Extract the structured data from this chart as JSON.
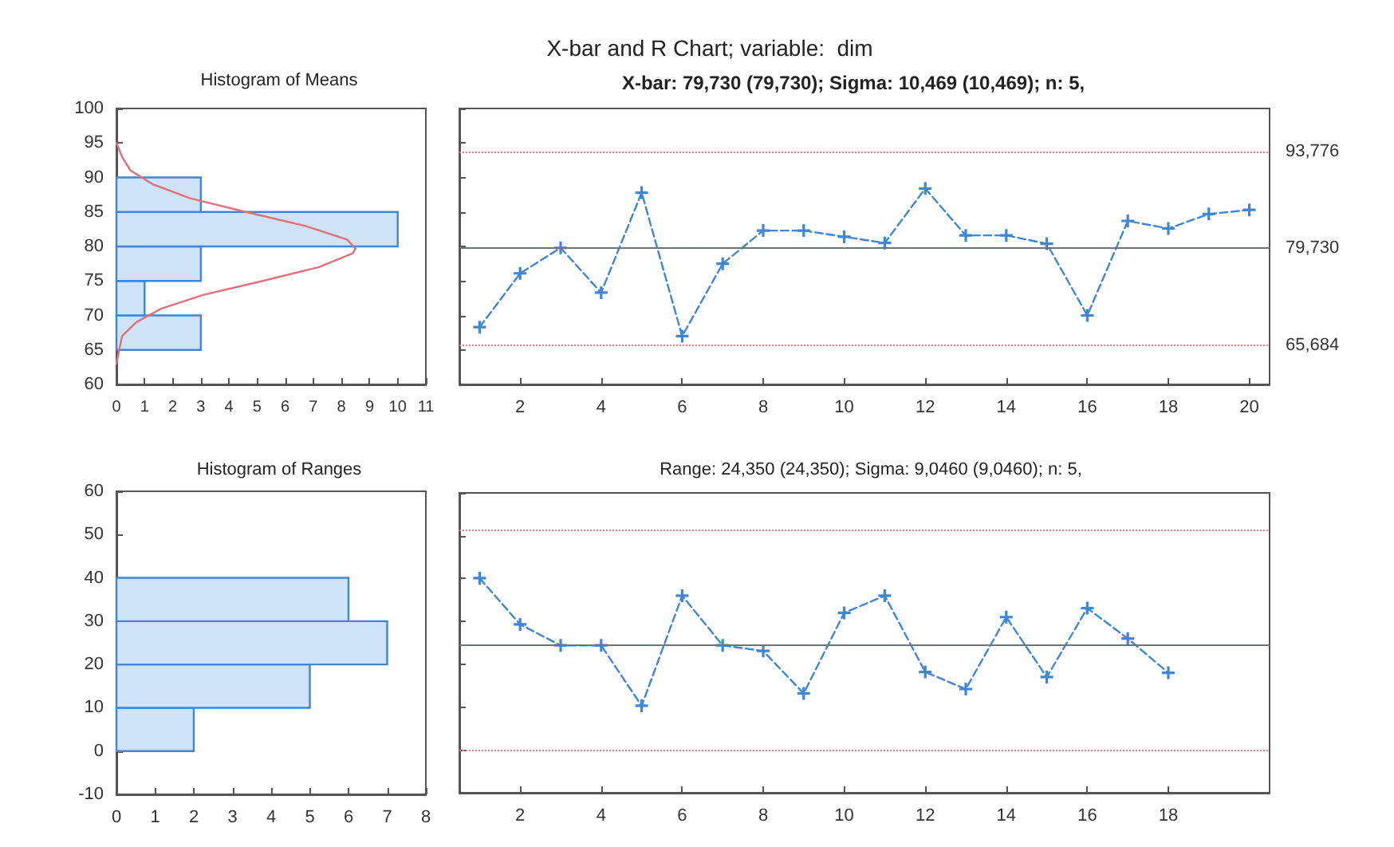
{
  "chart_data": [
    {
      "type": "histogram",
      "orientation": "horizontal",
      "title": "Histogram of Means",
      "bins": [
        65,
        70,
        75,
        80,
        85,
        90
      ],
      "values": [
        3,
        1,
        3,
        10,
        3
      ],
      "color": "#3f86d4",
      "series": [
        {
          "type": "line",
          "color": "#e0707c",
          "x": [
            63,
            65,
            67,
            69,
            71,
            73,
            75,
            77,
            79,
            79.7,
            81,
            83,
            85,
            87,
            89,
            91,
            93,
            95
          ],
          "values": [
            0,
            0.1,
            0.2,
            0.7,
            1.6,
            3.1,
            5.2,
            7.2,
            8.4,
            8.5,
            8.2,
            6.7,
            4.6,
            2.6,
            1.3,
            0.5,
            0.2,
            0
          ]
        }
      ],
      "xlim": [
        0,
        11
      ],
      "xticks": [
        0,
        1,
        2,
        3,
        4,
        5,
        6,
        7,
        8,
        9,
        10,
        11
      ],
      "ylim": [
        60,
        100
      ],
      "yticks": [
        60,
        65,
        70,
        75,
        80,
        85,
        90,
        95,
        100
      ],
      "grid": false
    },
    {
      "type": "line",
      "title": "X-bar and R Chart; variable:  dim",
      "subtitle": "X-bar: 79,730 (79,730); Sigma: 10,469 (10,469); n: 5,",
      "x": [
        1,
        2,
        3,
        4,
        5,
        6,
        7,
        8,
        9,
        10,
        11,
        12,
        13,
        14,
        15,
        16,
        17,
        18,
        19,
        20
      ],
      "series": [
        {
          "color": "#3f86d4",
          "values": [
            68.3,
            76.1,
            79.8,
            73.3,
            87.8,
            67.0,
            77.5,
            82.3,
            82.3,
            81.4,
            80.5,
            88.4,
            81.6,
            81.6,
            80.4,
            70.0,
            83.7,
            82.6,
            84.7,
            85.3
          ]
        }
      ],
      "xlim": [
        0.5,
        20.5
      ],
      "xticks": [
        2,
        4,
        6,
        8,
        10,
        12,
        14,
        16,
        18,
        20
      ],
      "ylim": [
        60,
        100
      ],
      "yticks": [
        60,
        65,
        70,
        75,
        80,
        85,
        90,
        95,
        100
      ],
      "tick_labels": "x",
      "line_style": "dashed",
      "marker": "cross",
      "grid": false,
      "ref_lines": [
        {
          "axis": "y",
          "value": 93.776,
          "label": "93,776",
          "color": "#e07a8a",
          "line_style": "dotted"
        },
        {
          "axis": "y",
          "value": 79.73,
          "label": "79,730",
          "color": "#6e7378",
          "line_style": "solid"
        },
        {
          "axis": "y",
          "value": 65.684,
          "label": "65,684",
          "color": "#e07a8a",
          "line_style": "dotted"
        }
      ]
    },
    {
      "type": "histogram",
      "orientation": "horizontal",
      "title": "Histogram of Ranges",
      "bins": [
        0,
        10,
        20,
        30,
        40
      ],
      "values": [
        2,
        5,
        7,
        6
      ],
      "color": "#3f86d4",
      "xlim": [
        0,
        8
      ],
      "xticks": [
        0,
        1,
        2,
        3,
        4,
        5,
        6,
        7,
        8
      ],
      "ylim": [
        -10,
        60
      ],
      "yticks": [
        -10,
        0,
        10,
        20,
        30,
        40,
        50,
        60
      ],
      "grid": false
    },
    {
      "type": "line",
      "title": "Range: 24,350 (24,350); Sigma: 9,0460 (9,0460); n: 5,",
      "x": [
        1,
        2,
        3,
        4,
        5,
        6,
        7,
        8,
        9,
        10,
        11,
        12,
        13,
        14,
        15,
        16,
        17,
        18
      ],
      "series": [
        {
          "color": "#3f86d4",
          "values": [
            40.1,
            29.3,
            24.4,
            24.4,
            10.3,
            36.0,
            24.4,
            23.1,
            13.2,
            32.0,
            36.0,
            18.2,
            14.2,
            31.0,
            17.0,
            33.1,
            26.0,
            18.0
          ]
        }
      ],
      "xlim": [
        0.5,
        20.5
      ],
      "xticks": [
        2,
        4,
        6,
        8,
        10,
        12,
        14,
        16,
        18
      ],
      "ylim": [
        -10,
        60
      ],
      "yticks": [
        -10,
        0,
        10,
        20,
        30,
        40,
        50,
        60
      ],
      "tick_labels": "x",
      "line_style": "dashed",
      "marker": "cross",
      "grid": false,
      "ref_lines": [
        {
          "axis": "y",
          "value": 51.5,
          "color": "#e07a8a",
          "line_style": "dotted"
        },
        {
          "axis": "y",
          "value": 24.35,
          "color": "#6e7378",
          "line_style": "solid"
        },
        {
          "axis": "y",
          "value": 0,
          "color": "#e07a8a",
          "line_style": "dotted"
        }
      ]
    }
  ]
}
